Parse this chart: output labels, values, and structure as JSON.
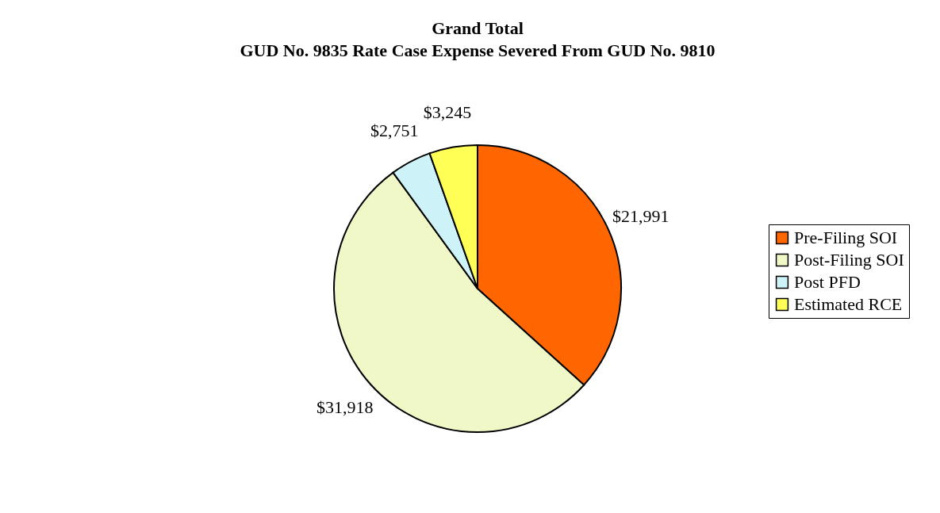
{
  "chart_data": {
    "type": "pie",
    "title": [
      "Grand Total",
      "GUD No. 9835  Rate Case Expense Severed From GUD No. 9810"
    ],
    "categories": [
      "Pre-Filing SOI",
      "Post-Filing SOI",
      "Post PFD",
      "Estimated RCE"
    ],
    "values": [
      21991,
      31918,
      2751,
      3245
    ],
    "value_labels": [
      "$21,991",
      "$31,918",
      "$2,751",
      "$3,245"
    ],
    "colors": [
      "#ff6600",
      "#f0f8c8",
      "#cdf3f8",
      "#ffff55"
    ],
    "legend": "right"
  }
}
